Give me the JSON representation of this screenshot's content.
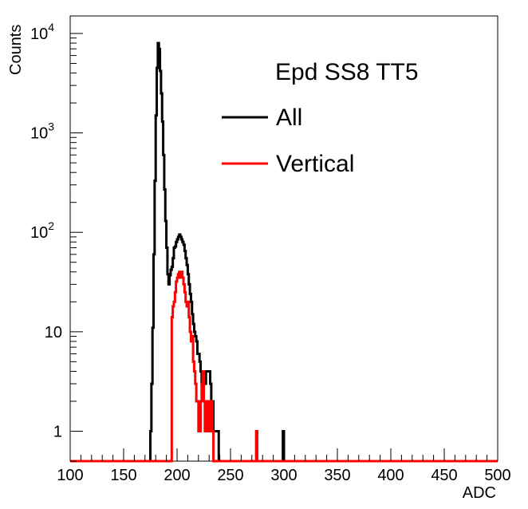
{
  "chart_data": {
    "type": "line",
    "title": "Epd SS8 TT5",
    "xlabel": "ADC",
    "ylabel": "Counts",
    "xlim": [
      100,
      500
    ],
    "ylim": [
      0.5,
      15000
    ],
    "yscale": "log",
    "grid": false,
    "legend_position": "top-right",
    "xticks": [
      "100",
      "150",
      "200",
      "250",
      "300",
      "350",
      "400",
      "450",
      "500"
    ],
    "yticks": [
      {
        "base": "1",
        "exp": ""
      },
      {
        "base": "10",
        "exp": ""
      },
      {
        "base": "10",
        "exp": "2"
      },
      {
        "base": "10",
        "exp": "3"
      },
      {
        "base": "10",
        "exp": "4"
      }
    ],
    "series": [
      {
        "name": "All",
        "color": "#000000",
        "bins": [
          [
            175,
            1
          ],
          [
            176,
            3
          ],
          [
            177,
            11
          ],
          [
            178,
            60
          ],
          [
            179,
            330
          ],
          [
            180,
            1500
          ],
          [
            181,
            4500
          ],
          [
            182,
            8000
          ],
          [
            183,
            7000
          ],
          [
            184,
            4200
          ],
          [
            185,
            2500
          ],
          [
            186,
            1300
          ],
          [
            187,
            600
          ],
          [
            188,
            270
          ],
          [
            189,
            130
          ],
          [
            190,
            70
          ],
          [
            191,
            38
          ],
          [
            192,
            30
          ],
          [
            193,
            37
          ],
          [
            194,
            42
          ],
          [
            195,
            45
          ],
          [
            196,
            55
          ],
          [
            197,
            70
          ],
          [
            198,
            72
          ],
          [
            199,
            80
          ],
          [
            200,
            85
          ],
          [
            201,
            90
          ],
          [
            202,
            95
          ],
          [
            203,
            90
          ],
          [
            204,
            85
          ],
          [
            205,
            80
          ],
          [
            206,
            75
          ],
          [
            207,
            65
          ],
          [
            208,
            55
          ],
          [
            209,
            47
          ],
          [
            210,
            38
          ],
          [
            211,
            30
          ],
          [
            212,
            24
          ],
          [
            213,
            20
          ],
          [
            214,
            15
          ],
          [
            215,
            12
          ],
          [
            216,
            10
          ],
          [
            217,
            9
          ],
          [
            218,
            8
          ],
          [
            219,
            6
          ],
          [
            220,
            6
          ],
          [
            221,
            5
          ],
          [
            222,
            4
          ],
          [
            223,
            3
          ],
          [
            224,
            3
          ],
          [
            225,
            4
          ],
          [
            226,
            3
          ],
          [
            227,
            4
          ],
          [
            228,
            4
          ],
          [
            229,
            4
          ],
          [
            230,
            4
          ],
          [
            231,
            3
          ],
          [
            232,
            2
          ],
          [
            233,
            2
          ],
          [
            234,
            1
          ],
          [
            235,
            1
          ],
          [
            236,
            1
          ],
          [
            237,
            1
          ],
          [
            238,
            1
          ],
          [
            239,
            0
          ],
          [
            240,
            0
          ],
          [
            299,
            1
          ]
        ]
      },
      {
        "name": "Vertical",
        "color": "#ff0000",
        "bins": [
          [
            195,
            14
          ],
          [
            196,
            18
          ],
          [
            197,
            20
          ],
          [
            198,
            25
          ],
          [
            199,
            32
          ],
          [
            200,
            35
          ],
          [
            201,
            38
          ],
          [
            202,
            40
          ],
          [
            203,
            35
          ],
          [
            204,
            40
          ],
          [
            205,
            35
          ],
          [
            206,
            30
          ],
          [
            207,
            25
          ],
          [
            208,
            20
          ],
          [
            209,
            18
          ],
          [
            210,
            20
          ],
          [
            211,
            14
          ],
          [
            212,
            10
          ],
          [
            213,
            8
          ],
          [
            214,
            9
          ],
          [
            215,
            5
          ],
          [
            216,
            4
          ],
          [
            217,
            3
          ],
          [
            218,
            2
          ],
          [
            219,
            2
          ],
          [
            220,
            1
          ],
          [
            221,
            1
          ],
          [
            222,
            2
          ],
          [
            223,
            3
          ],
          [
            224,
            4
          ],
          [
            225,
            2
          ],
          [
            226,
            1
          ],
          [
            227,
            1
          ],
          [
            228,
            2
          ],
          [
            229,
            2
          ],
          [
            230,
            1
          ],
          [
            231,
            1
          ],
          [
            232,
            2
          ],
          [
            233,
            1
          ],
          [
            274,
            1
          ]
        ]
      }
    ]
  }
}
